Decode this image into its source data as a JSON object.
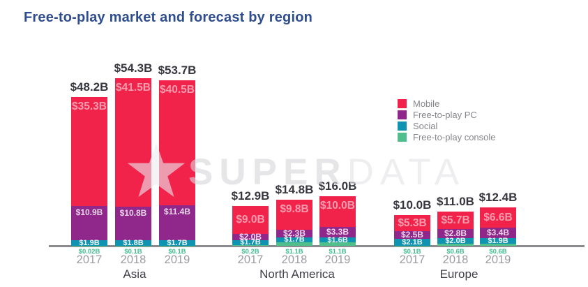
{
  "title": "Free-to-play market and forecast by region",
  "watermark": {
    "icon": "star-icon",
    "part1": "SUPER",
    "part2": "DATA"
  },
  "colors": {
    "mobile": "#F1234B",
    "pc": "#90288B",
    "social": "#0E93B0",
    "console": "#50BF8C",
    "title": "#2E4D8F",
    "axis": "#8a8a8f",
    "total_label": "#36363E",
    "year_label": "#9b9ba1",
    "region_label": "#3F3F48",
    "console_label": "#3FBE8C",
    "legend_text": "#85858C",
    "watermark_star": "#ececf0"
  },
  "chart_data": {
    "type": "bar",
    "stacked": true,
    "title": "Free-to-play market and forecast by region",
    "unit": "USD billions",
    "grid": false,
    "legend_position": "right",
    "legend": [
      {
        "key": "mobile",
        "label": "Mobile",
        "color": "#F1234B"
      },
      {
        "key": "pc",
        "label": "Free-to-play PC",
        "color": "#90288B"
      },
      {
        "key": "social",
        "label": "Social",
        "color": "#0E93B0"
      },
      {
        "key": "console",
        "label": "Free-to-play console",
        "color": "#50BF8C"
      }
    ],
    "groups": [
      {
        "region": "Asia",
        "bars": [
          {
            "year": "2017",
            "total": 48.2,
            "total_label": "$48.2B",
            "values": {
              "mobile": 35.3,
              "pc": 10.9,
              "social": 1.9,
              "console": 0.02
            },
            "labels": {
              "mobile": "$35.3B",
              "pc": "$10.9B",
              "social": "$1.9B",
              "console": "$0.02B"
            }
          },
          {
            "year": "2018",
            "total": 54.3,
            "total_label": "$54.3B",
            "values": {
              "mobile": 41.5,
              "pc": 10.8,
              "social": 1.8,
              "console": 0.1
            },
            "labels": {
              "mobile": "$41.5B",
              "pc": "$10.8B",
              "social": "$1.8B",
              "console": "$0.1B"
            }
          },
          {
            "year": "2019",
            "total": 53.7,
            "total_label": "$53.7B",
            "values": {
              "mobile": 40.5,
              "pc": 11.4,
              "social": 1.7,
              "console": 0.1
            },
            "labels": {
              "mobile": "$40.5B",
              "pc": "$11.4B",
              "social": "$1.7B",
              "console": "$0.1B"
            }
          }
        ]
      },
      {
        "region": "North America",
        "bars": [
          {
            "year": "2017",
            "total": 12.9,
            "total_label": "$12.9B",
            "values": {
              "mobile": 9.0,
              "pc": 2.0,
              "social": 1.7,
              "console": 0.2
            },
            "labels": {
              "mobile": "$9.0B",
              "pc": "$2.0B",
              "social": "$1.7B",
              "console": "$0.2B"
            }
          },
          {
            "year": "2018",
            "total": 14.8,
            "total_label": "$14.8B",
            "values": {
              "mobile": 9.8,
              "pc": 2.3,
              "social": 1.7,
              "console": 1.1
            },
            "labels": {
              "mobile": "$9.8B",
              "pc": "$2.3B",
              "social": "$1.7B",
              "console": "$1.1B"
            }
          },
          {
            "year": "2019",
            "total": 16.0,
            "total_label": "$16.0B",
            "values": {
              "mobile": 10.0,
              "pc": 3.3,
              "social": 1.6,
              "console": 1.1
            },
            "labels": {
              "mobile": "$10.0B",
              "pc": "$3.3B",
              "social": "$1.6B",
              "console": "$1.1B"
            }
          }
        ]
      },
      {
        "region": "Europe",
        "bars": [
          {
            "year": "2017",
            "total": 10.0,
            "total_label": "$10.0B",
            "values": {
              "mobile": 5.3,
              "pc": 2.5,
              "social": 2.1,
              "console": 0.1
            },
            "labels": {
              "mobile": "$5.3B",
              "pc": "$2.5B",
              "social": "$2.1B",
              "console": "$0.1B"
            }
          },
          {
            "year": "2018",
            "total": 11.0,
            "total_label": "$11.0B",
            "values": {
              "mobile": 5.7,
              "pc": 2.8,
              "social": 2.0,
              "console": 0.6
            },
            "labels": {
              "mobile": "$5.7B",
              "pc": "$2.8B",
              "social": "$2.0B",
              "console": "$0.6B"
            }
          },
          {
            "year": "2019",
            "total": 12.4,
            "total_label": "$12.4B",
            "values": {
              "mobile": 6.6,
              "pc": 3.4,
              "social": 1.9,
              "console": 0.6
            },
            "labels": {
              "mobile": "$6.6B",
              "pc": "$3.4B",
              "social": "$1.9B",
              "console": "$0.6B"
            }
          }
        ]
      }
    ]
  }
}
